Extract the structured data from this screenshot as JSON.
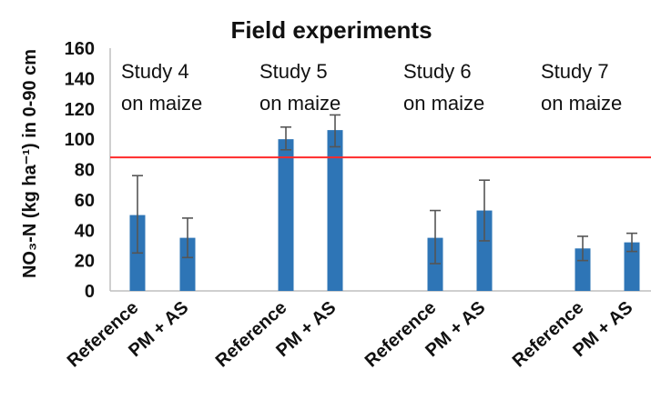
{
  "chart_data": {
    "type": "bar",
    "title": "Field experiments",
    "ylabel": "NO₃-N (kg ha⁻¹) in 0-90 cm",
    "ylim": [
      0,
      160
    ],
    "yticks": [
      0,
      20,
      40,
      60,
      80,
      100,
      120,
      140,
      160
    ],
    "categories": [
      "Reference",
      "PM + AS",
      "Reference",
      "PM + AS",
      "Reference",
      "PM + AS",
      "Reference",
      "PM + AS"
    ],
    "values": [
      50,
      35,
      100,
      106,
      35,
      53,
      28,
      32
    ],
    "error_low": [
      25,
      22,
      93,
      95,
      18,
      33,
      20,
      26
    ],
    "error_high": [
      76,
      48,
      108,
      116,
      53,
      73,
      36,
      38
    ],
    "groups": [
      {
        "line1": "Study 4",
        "line2": "on maize"
      },
      {
        "line1": "Study 5",
        "line2": "on maize"
      },
      {
        "line1": "Study 6",
        "line2": "on maize"
      },
      {
        "line1": "Study 7",
        "line2": "on maize"
      }
    ],
    "reference_line": {
      "value": 88,
      "color": "#ff2a2a"
    },
    "bar_color": "#2e75b6",
    "grid": false,
    "legend": "none"
  }
}
